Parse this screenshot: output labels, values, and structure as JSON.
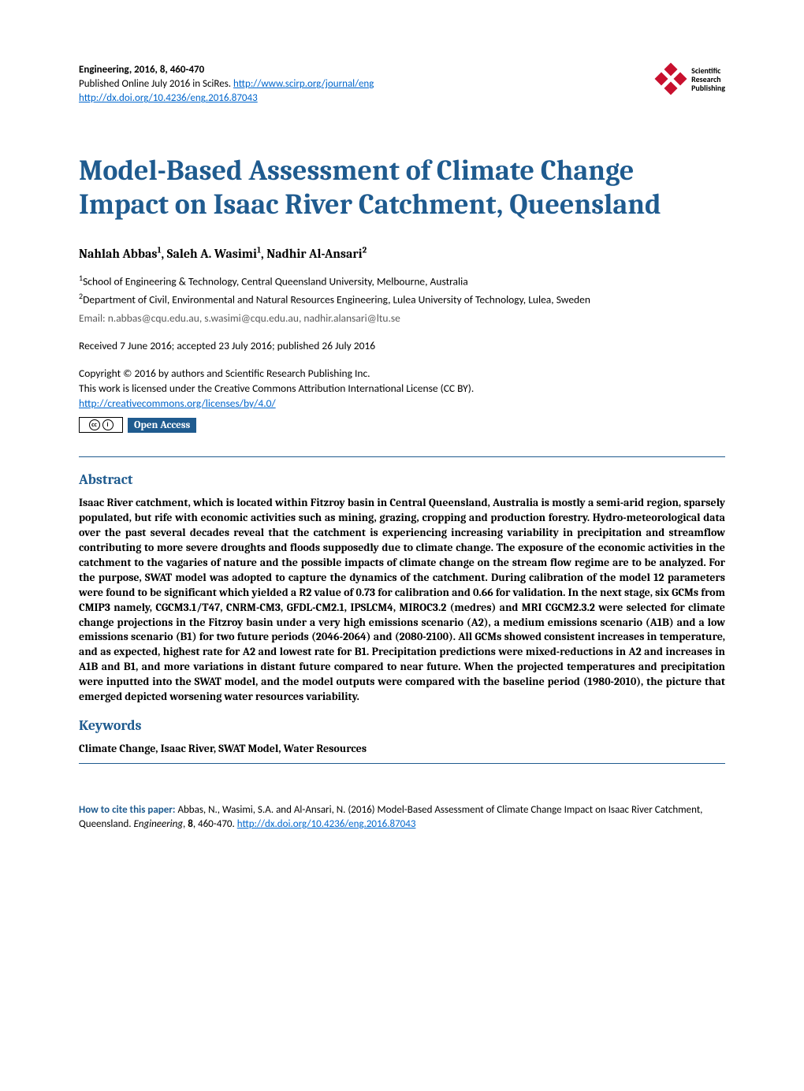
{
  "colors": {
    "accent": "#1f5b8f",
    "link": "#0066cc",
    "body": "#000000",
    "muted": "#595959",
    "background": "#ffffff",
    "logo_diamond": "#c8102e"
  },
  "typography": {
    "title_fontsize": 36,
    "section_heading_fontsize": 18,
    "body_fontsize": 14,
    "meta_fontsize": 13,
    "title_family": "Cambria, Georgia, serif",
    "body_family": "Calibri, Arial, sans-serif"
  },
  "header": {
    "journal_line": "Engineering, 2016, 8, 460-470",
    "published_prefix": "Published Online July 2016 in SciRes. ",
    "journal_url": "http://www.scirp.org/journal/eng",
    "doi_url": "http://dx.doi.org/10.4236/eng.2016.87043",
    "publisher_logo_text_l1": "Scientific",
    "publisher_logo_text_l2": "Research",
    "publisher_logo_text_l3": "Publishing"
  },
  "title": "Model-Based Assessment of Climate Change Impact on Isaac River Catchment, Queensland",
  "authors_html": "Nahlah Abbas<sup>1</sup>, Saleh A. Wasimi<sup>1</sup>, Nadhir Al-Ansari<sup>2</sup>",
  "affiliations": {
    "a1": "School of Engineering & Technology, Central Queensland University, Melbourne, Australia",
    "a2": "Department of Civil, Environmental and Natural Resources Engineering, Lulea University of Technology, Lulea, Sweden"
  },
  "emails_label": "Email: ",
  "emails": "n.abbas@cqu.edu.au, s.wasimi@cqu.edu.au, nadhir.alansari@ltu.se",
  "dates": "Received 7 June 2016; accepted 23 July 2016; published 26 July 2016",
  "copyright": {
    "line1": "Copyright © 2016 by authors and Scientific Research Publishing Inc.",
    "line2": "This work is licensed under the Creative Commons Attribution International License (CC BY).",
    "license_url": "http://creativecommons.org/licenses/by/4.0/"
  },
  "badges": {
    "cc_symbol": "cc",
    "by_symbol": "i",
    "open_access": "Open Access"
  },
  "sections": {
    "abstract_heading": "Abstract",
    "abstract_body": "Isaac River catchment, which is located within Fitzroy basin in Central Queensland, Australia is mostly a semi-arid region, sparsely populated, but rife with economic activities such as mining, grazing, cropping and production forestry. Hydro-meteorological data over the past several decades reveal that the catchment is experiencing increasing variability in precipitation and streamflow contributing to more severe droughts and floods supposedly due to climate change. The exposure of the economic activities in the catchment to the vagaries of nature and the possible impacts of climate change on the stream flow regime are to be analyzed. For the purpose, SWAT model was adopted to capture the dynamics of the catchment. During calibration of the model 12 parameters were found to be significant which yielded a R2 value of 0.73 for calibration and 0.66 for validation. In the next stage, six GCMs from CMIP3 namely, CGCM3.1/T47, CNRM-CM3, GFDL-CM2.1, IPSLCM4, MIROC3.2 (medres) and MRI CGCM2.3.2 were selected for climate change projections in the Fitzroy basin under a very high emissions scenario (A2), a medium emissions scenario (A1B) and a low emissions scenario (B1) for two future periods (2046-2064) and (2080-2100). All GCMs showed consistent increases in temperature, and as expected, highest rate for A2 and lowest rate for B1. Precipitation predictions were mixed-reductions in A2 and increases in A1B and B1, and more variations in distant future compared to near future. When the projected temperatures and precipitation were inputted into the SWAT model, and the model outputs were compared with the baseline period (1980-2010), the picture that emerged depicted worsening water resources variability.",
    "keywords_heading": "Keywords",
    "keywords_body": "Climate Change, Isaac River, SWAT Model, Water Resources"
  },
  "cite": {
    "lead": "How to cite this paper: ",
    "text_before_journal": "Abbas, N., Wasimi, S.A. and Al-Ansari, N. (2016) Model-Based Assessment of Climate Change Impact on Isaac River Catchment, Queensland. ",
    "journal": "Engineering",
    "text_after_journal": ", ",
    "volume": "8",
    "pages": ", 460-470. ",
    "doi_url": "http://dx.doi.org/10.4236/eng.2016.87043"
  }
}
